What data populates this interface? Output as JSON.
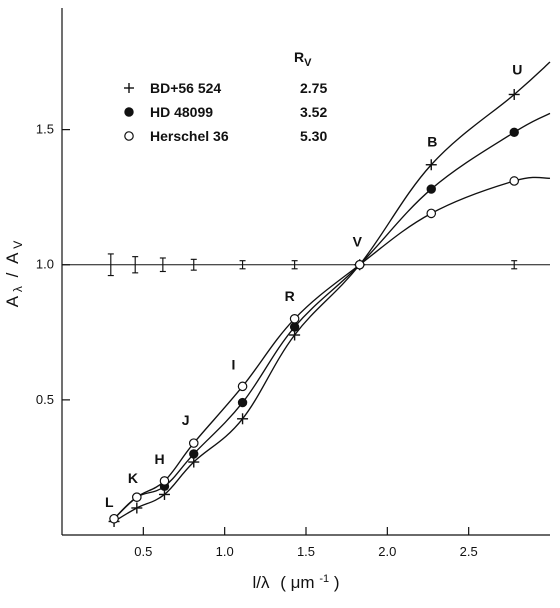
{
  "chart_data": {
    "type": "line",
    "x_label_parts": {
      "prefix": "l/λ",
      "unit_open": "(",
      "unit_main": "μm",
      "unit_sup": "-1",
      "unit_close": ")"
    },
    "y_label_parts": {
      "num_base": "A",
      "num_sub": "λ",
      "slash": "/",
      "den_base": "A",
      "den_sub": "V"
    },
    "x_ticks": [
      {
        "value": 0.5,
        "label": "0.5"
      },
      {
        "value": 1.0,
        "label": "1.0"
      },
      {
        "value": 1.5,
        "label": "1.5"
      },
      {
        "value": 2.0,
        "label": "2.0"
      },
      {
        "value": 2.5,
        "label": "2.5"
      }
    ],
    "y_ticks": [
      {
        "value": 0.5,
        "label": "0.5"
      },
      {
        "value": 1.0,
        "label": "1.0"
      },
      {
        "value": 1.5,
        "label": "1.5"
      }
    ],
    "xlim": [
      0.0,
      3.0
    ],
    "ylim": [
      0.0,
      1.95
    ],
    "reference_line": {
      "y": 1.0
    },
    "legend": {
      "placement": "top-left",
      "rv_title_base": "R",
      "rv_title_sub": "V"
    },
    "series": [
      {
        "name": "BD+56 524",
        "rv": "2.75",
        "marker": "plus",
        "points": [
          {
            "x": 0.32,
            "y": 0.05
          },
          {
            "x": 0.46,
            "y": 0.1
          },
          {
            "x": 0.63,
            "y": 0.15
          },
          {
            "x": 0.81,
            "y": 0.27
          },
          {
            "x": 1.11,
            "y": 0.43
          },
          {
            "x": 1.43,
            "y": 0.74
          },
          {
            "x": 1.83,
            "y": 1.0
          },
          {
            "x": 2.27,
            "y": 1.37
          },
          {
            "x": 2.78,
            "y": 1.63
          }
        ],
        "curve": [
          {
            "x": 0.32,
            "y": 0.05
          },
          {
            "x": 0.46,
            "y": 0.1
          },
          {
            "x": 0.63,
            "y": 0.15
          },
          {
            "x": 0.81,
            "y": 0.27
          },
          {
            "x": 1.11,
            "y": 0.43
          },
          {
            "x": 1.43,
            "y": 0.74
          },
          {
            "x": 1.83,
            "y": 1.0
          },
          {
            "x": 2.27,
            "y": 1.37
          },
          {
            "x": 2.78,
            "y": 1.63
          },
          {
            "x": 3.0,
            "y": 1.75
          }
        ]
      },
      {
        "name": "HD 48099",
        "rv": "3.52",
        "marker": "filled-circle",
        "points": [
          {
            "x": 0.32,
            "y": 0.06
          },
          {
            "x": 0.46,
            "y": 0.14
          },
          {
            "x": 0.63,
            "y": 0.18
          },
          {
            "x": 0.81,
            "y": 0.3
          },
          {
            "x": 1.11,
            "y": 0.49
          },
          {
            "x": 1.43,
            "y": 0.77
          },
          {
            "x": 1.83,
            "y": 1.0
          },
          {
            "x": 2.27,
            "y": 1.28
          },
          {
            "x": 2.78,
            "y": 1.49
          }
        ],
        "curve": [
          {
            "x": 0.32,
            "y": 0.06
          },
          {
            "x": 0.46,
            "y": 0.14
          },
          {
            "x": 0.63,
            "y": 0.18
          },
          {
            "x": 0.81,
            "y": 0.3
          },
          {
            "x": 1.11,
            "y": 0.49
          },
          {
            "x": 1.43,
            "y": 0.77
          },
          {
            "x": 1.83,
            "y": 1.0
          },
          {
            "x": 2.27,
            "y": 1.28
          },
          {
            "x": 2.78,
            "y": 1.49
          },
          {
            "x": 3.0,
            "y": 1.56
          }
        ]
      },
      {
        "name": "Herschel 36",
        "rv": "5.30",
        "marker": "open-circle",
        "points": [
          {
            "x": 0.32,
            "y": 0.06
          },
          {
            "x": 0.46,
            "y": 0.14
          },
          {
            "x": 0.63,
            "y": 0.2
          },
          {
            "x": 0.81,
            "y": 0.34
          },
          {
            "x": 1.11,
            "y": 0.55
          },
          {
            "x": 1.43,
            "y": 0.8
          },
          {
            "x": 1.83,
            "y": 1.0
          },
          {
            "x": 2.27,
            "y": 1.19
          },
          {
            "x": 2.78,
            "y": 1.31
          }
        ],
        "curve": [
          {
            "x": 0.32,
            "y": 0.06
          },
          {
            "x": 0.46,
            "y": 0.14
          },
          {
            "x": 0.63,
            "y": 0.2
          },
          {
            "x": 0.81,
            "y": 0.34
          },
          {
            "x": 1.11,
            "y": 0.55
          },
          {
            "x": 1.43,
            "y": 0.8
          },
          {
            "x": 1.83,
            "y": 1.0
          },
          {
            "x": 2.27,
            "y": 1.19
          },
          {
            "x": 2.78,
            "y": 1.31
          },
          {
            "x": 3.0,
            "y": 1.32
          }
        ]
      }
    ],
    "band_labels": [
      {
        "text": "L",
        "x": 0.32,
        "y": 0.06
      },
      {
        "text": "K",
        "x": 0.46,
        "y": 0.14
      },
      {
        "text": "H",
        "x": 0.63,
        "y": 0.2
      },
      {
        "text": "J",
        "x": 0.81,
        "y": 0.34
      },
      {
        "text": "I",
        "x": 1.11,
        "y": 0.55
      },
      {
        "text": "R",
        "x": 1.43,
        "y": 0.8
      },
      {
        "text": "V",
        "x": 1.83,
        "y": 1.0
      },
      {
        "text": "B",
        "x": 2.27,
        "y": 1.37
      },
      {
        "text": "U",
        "x": 2.78,
        "y": 1.63
      }
    ],
    "reference_error_bars": [
      {
        "x": 0.3,
        "low": 0.96,
        "high": 1.04
      },
      {
        "x": 0.45,
        "low": 0.97,
        "high": 1.03
      },
      {
        "x": 0.62,
        "low": 0.975,
        "high": 1.025
      },
      {
        "x": 0.81,
        "low": 0.98,
        "high": 1.02
      },
      {
        "x": 1.11,
        "low": 0.985,
        "high": 1.015
      },
      {
        "x": 1.43,
        "low": 0.985,
        "high": 1.015
      },
      {
        "x": 2.78,
        "low": 0.985,
        "high": 1.015
      }
    ]
  }
}
